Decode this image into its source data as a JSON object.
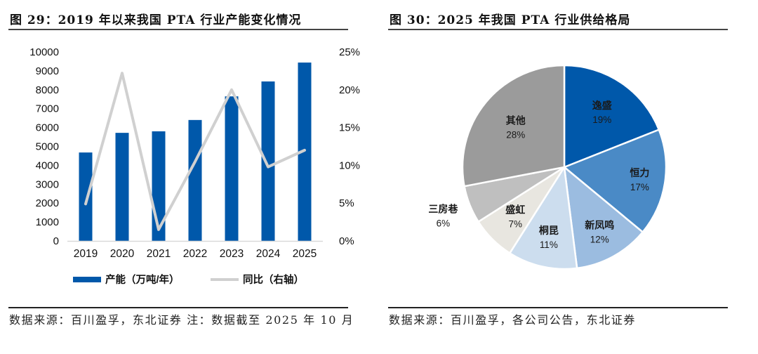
{
  "left_panel": {
    "title": "图 29：2019 年以来我国 PTA 行业产能变化情况",
    "source": "数据来源：百川盈孚，东北证券 注：数据截至 2025 年 10 月"
  },
  "right_panel": {
    "title": "图 30：2025 年我国 PTA 行业供给格局",
    "source": "数据来源：百川盈孚，各公司公告，东北证券"
  },
  "chart_data": [
    {
      "type": "bar",
      "title": "2019 年以来我国 PTA 行业产能变化情况",
      "categories": [
        "2019",
        "2020",
        "2021",
        "2022",
        "2023",
        "2024",
        "2025"
      ],
      "series": [
        {
          "name": "产能（万吨/年）",
          "type": "bar",
          "axis": "left",
          "color": "#0058AA",
          "values": [
            4680,
            5720,
            5800,
            6400,
            7650,
            8440,
            9440
          ]
        },
        {
          "name": "同比（右轴）",
          "type": "line",
          "axis": "right",
          "color": "#D0D0D0",
          "values": [
            4.9,
            22.2,
            1.5,
            10.5,
            20.0,
            9.8,
            12.0
          ]
        }
      ],
      "left_axis": {
        "ylim": [
          0,
          10000
        ],
        "ticks": [
          "0",
          "1000",
          "2000",
          "3000",
          "4000",
          "5000",
          "6000",
          "7000",
          "8000",
          "9000",
          "10000"
        ]
      },
      "right_axis": {
        "ylim": [
          0,
          25
        ],
        "ticks": [
          "0%",
          "5%",
          "10%",
          "15%",
          "20%",
          "25%"
        ]
      },
      "xlabel": "",
      "ylabel": "",
      "grid": false,
      "legend": "bottom"
    },
    {
      "type": "pie",
      "title": "2025 年我国 PTA 行业供给格局",
      "slices": [
        {
          "label": "逸盛",
          "value": 19,
          "pct_label": "19%",
          "color": "#0058AA"
        },
        {
          "label": "恒力",
          "value": 17,
          "pct_label": "17%",
          "color": "#4A8AC6"
        },
        {
          "label": "新凤鸣",
          "value": 12,
          "pct_label": "12%",
          "color": "#9BBCE0"
        },
        {
          "label": "桐昆",
          "value": 11,
          "pct_label": "11%",
          "color": "#CCDDEE"
        },
        {
          "label": "盛虹",
          "value": 7,
          "pct_label": "7%",
          "color": "#E8E6E0"
        },
        {
          "label": "三房巷",
          "value": 6,
          "pct_label": "6%",
          "color": "#BFBFBF"
        },
        {
          "label": "其他",
          "value": 28,
          "pct_label": "28%",
          "color": "#9B9B9B"
        }
      ],
      "start": "top",
      "direction": "clockwise",
      "legend": "none"
    }
  ]
}
